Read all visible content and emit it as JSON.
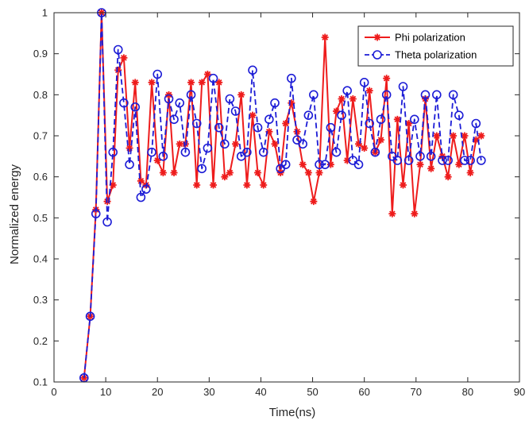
{
  "chart_data": {
    "type": "line",
    "title": "",
    "xlabel": "Time(ns)",
    "ylabel": "Normalized energy",
    "xlim": [
      0,
      90
    ],
    "ylim": [
      0.1,
      1
    ],
    "xticks": [
      0,
      10,
      20,
      30,
      40,
      50,
      60,
      70,
      80,
      90
    ],
    "yticks": [
      0.1,
      0.2,
      0.3,
      0.4,
      0.5,
      0.6,
      0.7,
      0.8,
      0.9,
      1
    ],
    "xtick_labels": [
      "0",
      "10",
      "20",
      "30",
      "40",
      "50",
      "60",
      "70",
      "80",
      "90"
    ],
    "ytick_labels": [
      "0.1",
      "0.2",
      "0.3",
      "0.4",
      "0.5",
      "0.6",
      "0.7",
      "0.8",
      "0.9",
      "1"
    ],
    "grid": false,
    "legend_position": "top-right",
    "series": [
      {
        "name": "Phi polarization",
        "color": "#ee1c1c",
        "line_style": "solid",
        "marker": "asterisk",
        "x": [
          5.8,
          7.0,
          8.1,
          9.2,
          10.3,
          11.4,
          12.4,
          13.5,
          14.6,
          15.7,
          16.8,
          17.8,
          18.9,
          20.0,
          21.1,
          22.2,
          23.2,
          24.3,
          25.4,
          26.5,
          27.6,
          28.6,
          29.7,
          30.8,
          31.9,
          33.0,
          34.0,
          35.1,
          36.2,
          37.3,
          38.4,
          39.4,
          40.5,
          41.6,
          42.7,
          43.8,
          44.8,
          45.9,
          47.0,
          48.1,
          49.2,
          50.2,
          51.3,
          52.4,
          53.5,
          54.6,
          55.6,
          56.7,
          57.8,
          58.9,
          60.0,
          61.0,
          62.1,
          63.2,
          64.3,
          65.4,
          66.4,
          67.5,
          68.6,
          69.7,
          70.8,
          71.8,
          72.9,
          74.0,
          75.1,
          76.2,
          77.2,
          78.3,
          79.4,
          80.5,
          81.6,
          82.6
        ],
        "values": [
          0.11,
          0.26,
          0.52,
          1.0,
          0.54,
          0.58,
          0.86,
          0.89,
          0.67,
          0.83,
          0.59,
          0.58,
          0.83,
          0.64,
          0.61,
          0.8,
          0.61,
          0.68,
          0.68,
          0.83,
          0.58,
          0.83,
          0.85,
          0.58,
          0.83,
          0.6,
          0.61,
          0.68,
          0.8,
          0.58,
          0.75,
          0.61,
          0.58,
          0.71,
          0.68,
          0.61,
          0.73,
          0.78,
          0.71,
          0.63,
          0.61,
          0.54,
          0.61,
          0.94,
          0.63,
          0.76,
          0.79,
          0.64,
          0.79,
          0.68,
          0.67,
          0.81,
          0.66,
          0.69,
          0.84,
          0.51,
          0.74,
          0.58,
          0.73,
          0.51,
          0.63,
          0.79,
          0.62,
          0.7,
          0.65,
          0.6,
          0.7,
          0.63,
          0.7,
          0.61,
          0.69,
          0.7
        ]
      },
      {
        "name": "Theta polarization",
        "color": "#1c1cd6",
        "line_style": "dashed",
        "marker": "circle",
        "x": [
          5.8,
          7.0,
          8.1,
          9.2,
          10.3,
          11.4,
          12.4,
          13.5,
          14.6,
          15.7,
          16.8,
          17.8,
          18.9,
          20.0,
          21.1,
          22.2,
          23.2,
          24.3,
          25.4,
          26.5,
          27.6,
          28.6,
          29.7,
          30.8,
          31.9,
          33.0,
          34.0,
          35.1,
          36.2,
          37.3,
          38.4,
          39.4,
          40.5,
          41.6,
          42.7,
          43.8,
          44.8,
          45.9,
          47.0,
          48.1,
          49.2,
          50.2,
          51.3,
          52.4,
          53.5,
          54.6,
          55.6,
          56.7,
          57.8,
          58.9,
          60.0,
          61.0,
          62.1,
          63.2,
          64.3,
          65.4,
          66.4,
          67.5,
          68.6,
          69.7,
          70.8,
          71.8,
          72.9,
          74.0,
          75.1,
          76.2,
          77.2,
          78.3,
          79.4,
          80.5,
          81.6,
          82.6
        ],
        "values": [
          0.11,
          0.26,
          0.51,
          1.0,
          0.49,
          0.66,
          0.91,
          0.78,
          0.63,
          0.77,
          0.55,
          0.57,
          0.66,
          0.85,
          0.65,
          0.79,
          0.74,
          0.78,
          0.66,
          0.8,
          0.73,
          0.62,
          0.67,
          0.84,
          0.72,
          0.68,
          0.79,
          0.76,
          0.65,
          0.66,
          0.86,
          0.72,
          0.66,
          0.74,
          0.78,
          0.62,
          0.63,
          0.84,
          0.69,
          0.68,
          0.75,
          0.8,
          0.63,
          0.63,
          0.72,
          0.66,
          0.75,
          0.81,
          0.64,
          0.63,
          0.83,
          0.73,
          0.66,
          0.74,
          0.8,
          0.65,
          0.64,
          0.82,
          0.64,
          0.74,
          0.65,
          0.8,
          0.65,
          0.8,
          0.64,
          0.64,
          0.8,
          0.75,
          0.64,
          0.64,
          0.73,
          0.64
        ]
      }
    ]
  }
}
